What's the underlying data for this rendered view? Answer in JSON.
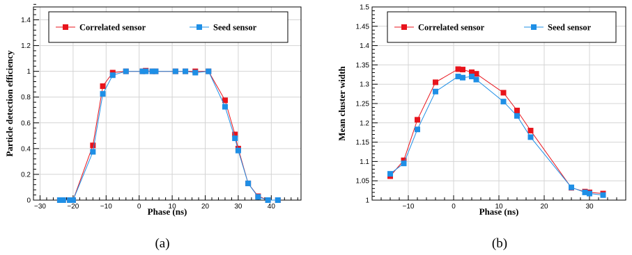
{
  "chart_data": [
    {
      "type": "line",
      "caption": "(a)",
      "xlabel": "Phase (ns)",
      "ylabel": "Particle detection efficiency",
      "xlim": [
        -32,
        49
      ],
      "ylim": [
        0,
        1.5
      ],
      "xticks": [
        -30,
        -20,
        -10,
        0,
        10,
        20,
        30,
        40
      ],
      "yticks": [
        0,
        0.2,
        0.4,
        0.6,
        0.8,
        1,
        1.2,
        1.4
      ],
      "ytick_labels": [
        "0",
        "0.2",
        "0.4",
        "0.6",
        "0.8",
        "1",
        "1.2",
        "1.4"
      ],
      "grid": true,
      "legend_position": "top",
      "series": [
        {
          "name": "Correlated sensor",
          "color": "#e8141c",
          "x": [
            -24,
            -23,
            -21,
            -20,
            -14,
            -11,
            -8,
            -4,
            1,
            2,
            4,
            5,
            11,
            14,
            17,
            21,
            26,
            29,
            30,
            33,
            36,
            39,
            42
          ],
          "y": [
            0,
            0,
            0,
            0,
            0.425,
            0.885,
            0.99,
            1.0,
            1.0,
            1.005,
            1.0,
            1.0,
            1.0,
            1.0,
            1.0,
            1.0,
            0.775,
            0.51,
            0.4,
            0.13,
            0.03,
            0.0,
            0.0
          ]
        },
        {
          "name": "Seed sensor",
          "color": "#1e8fe6",
          "x": [
            -24,
            -23,
            -21,
            -20,
            -14,
            -11,
            -8,
            -4,
            1,
            2,
            4,
            5,
            11,
            14,
            17,
            21,
            26,
            29,
            30,
            33,
            36,
            39,
            42
          ],
          "y": [
            0,
            0,
            0,
            0,
            0.375,
            0.825,
            0.97,
            1.0,
            1.0,
            1.0,
            1.0,
            1.0,
            1.0,
            1.0,
            0.99,
            1.0,
            0.725,
            0.48,
            0.385,
            0.13,
            0.025,
            0.0,
            0.0
          ]
        }
      ]
    },
    {
      "type": "line",
      "caption": "(b)",
      "xlabel": "Phase (ns)",
      "ylabel": "Mean cluster width",
      "xlim": [
        -18,
        38
      ],
      "ylim": [
        1,
        1.5
      ],
      "xticks": [
        -10,
        0,
        10,
        20,
        30
      ],
      "yticks": [
        1,
        1.05,
        1.1,
        1.15,
        1.2,
        1.25,
        1.3,
        1.35,
        1.4,
        1.45,
        1.5
      ],
      "ytick_labels": [
        "1",
        "1.05",
        "1.1",
        "1.15",
        "1.2",
        "1.25",
        "1.3",
        "1.35",
        "1.4",
        "1.45",
        "1.5"
      ],
      "grid": true,
      "legend_position": "top",
      "series": [
        {
          "name": "Correlated sensor",
          "color": "#e8141c",
          "x": [
            -14,
            -11,
            -8,
            -4,
            1,
            2,
            4,
            5,
            11,
            14,
            17,
            26,
            29,
            30,
            33
          ],
          "y": [
            1.062,
            1.103,
            1.208,
            1.305,
            1.339,
            1.338,
            1.331,
            1.327,
            1.278,
            1.232,
            1.18,
            1.032,
            1.022,
            1.02,
            1.017
          ]
        },
        {
          "name": "Seed sensor",
          "color": "#1e8fe6",
          "x": [
            -14,
            -11,
            -8,
            -4,
            1,
            2,
            4,
            5,
            11,
            14,
            17,
            26,
            29,
            30,
            33
          ],
          "y": [
            1.068,
            1.095,
            1.183,
            1.281,
            1.32,
            1.317,
            1.32,
            1.312,
            1.255,
            1.218,
            1.163,
            1.033,
            1.02,
            1.017,
            1.013
          ]
        }
      ]
    }
  ]
}
